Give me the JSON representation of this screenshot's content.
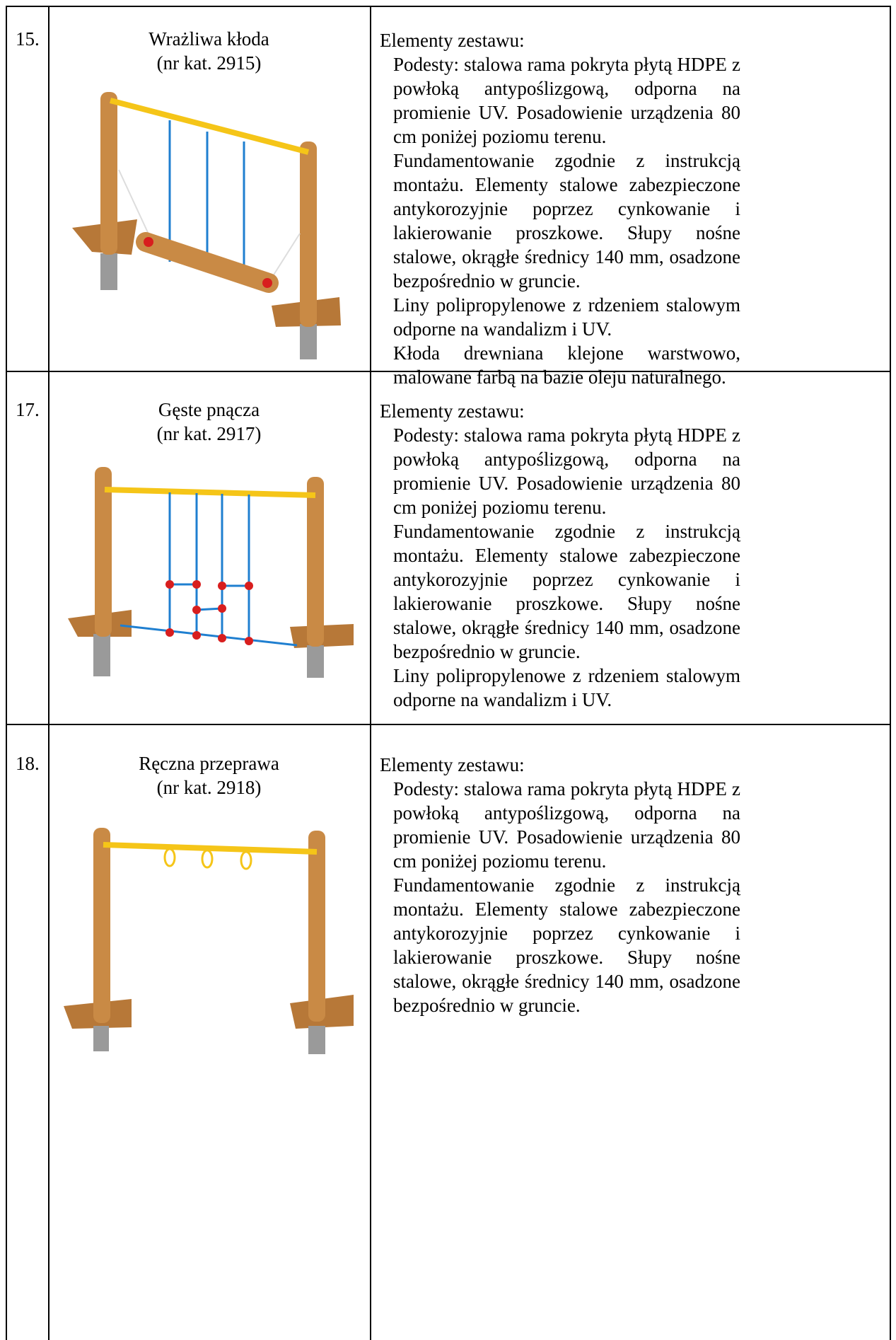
{
  "rows": [
    {
      "number": "15.",
      "name": "Wrażliwa kłoda",
      "catalog": "(nr kat. 2915)",
      "heading": "Elementy zestawu:",
      "paragraphs": [
        "Podesty: stalowa rama pokryta płytą HDPE z powłoką antypoślizgową, odporna na promienie UV. Posadowienie urządzenia 80 cm poniżej poziomu terenu.",
        "Fundamentowanie zgodnie z instrukcją montażu. Elementy stalowe zabezpieczone antykorozyjnie poprzez cynkowanie i lakierowanie proszkowe. Słupy nośne stalowe, okrągłe średnicy 140 mm, osadzone bezpośrednio w gruncie.",
        "Liny polipropylenowe z rdzeniem stalowym odporne na wandalizm i UV.",
        "Kłoda drewniana klejone warstwowo, malowane farbą na bazie oleju naturalnego."
      ]
    },
    {
      "number": "17.",
      "name": "Gęste pnącza",
      "catalog": "(nr kat. 2917)",
      "heading": "Elementy zestawu:",
      "paragraphs": [
        "Podesty: stalowa rama pokryta płytą HDPE z powłoką antypoślizgową, odporna na promienie UV. Posadowienie urządzenia 80 cm poniżej poziomu terenu.",
        "Fundamentowanie zgodnie z instrukcją montażu. Elementy stalowe zabezpieczone antykorozyjnie poprzez cynkowanie i lakierowanie proszkowe. Słupy nośne stalowe, okrągłe średnicy 140 mm, osadzone bezpośrednio w gruncie.",
        "Liny polipropylenowe z rdzeniem stalowym odporne na wandalizm i UV."
      ]
    },
    {
      "number": "18.",
      "name": "Ręczna przeprawa",
      "catalog": "(nr kat. 2918)",
      "heading": "Elementy zestawu:",
      "paragraphs": [
        "Podesty: stalowa rama pokryta płytą HDPE z powłoką antypoślizgową, odporna na promienie UV. Posadowienie urządzenia 80 cm poniżej poziomu terenu.",
        "Fundamentowanie zgodnie z instrukcją montażu. Elementy stalowe zabezpieczone antykorozyjnie poprzez cynkowanie i lakierowanie proszkowe. Słupy nośne stalowe, okrągłe średnicy 140 mm, osadzone bezpośrednio w gruncie."
      ]
    }
  ],
  "colors": {
    "wood": "#c98a45",
    "wood_dark": "#a8662c",
    "bar": "#f5c518",
    "rope": "#1f7fd0",
    "red": "#d81e1e",
    "steel": "#9a9a9a"
  }
}
